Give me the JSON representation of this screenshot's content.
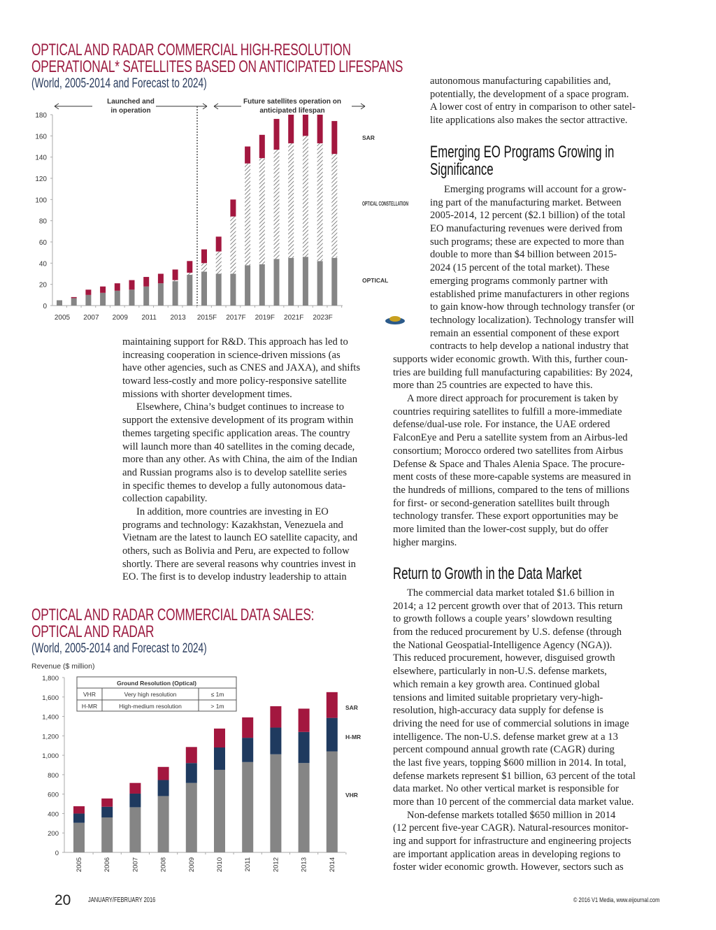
{
  "chart1": {
    "title_lines": [
      "OPTICAL AND RADAR COMMERCIAL HIGH-RESOLUTION",
      "OPERATIONAL* SATELLITES BASED ON ANTICIPATED LIFESPANS"
    ],
    "subtitle": "(World, 2005-2014 and Forecast to 2024)"
  },
  "chart2": {
    "title_lines": [
      "OPTICAL AND RADAR COMMERCIAL DATA SALES:",
      "OPTICAL AND RADAR"
    ],
    "subtitle": "(World, 2005-2014 and Forecast to 2024)"
  },
  "chart_data": [
    {
      "type": "bar",
      "stacked": true,
      "categories": [
        "2005",
        "2006",
        "2007",
        "2008",
        "2009",
        "2010",
        "2011",
        "2012",
        "2013",
        "2014",
        "2015F",
        "2016F",
        "2017F",
        "2018F",
        "2019F",
        "2020F",
        "2021F",
        "2022F",
        "2023F",
        "2024F"
      ],
      "tick_labels": [
        "2005",
        "2007",
        "2009",
        "2011",
        "2013",
        "2015F",
        "2017F",
        "2019F",
        "2021F",
        "2023F"
      ],
      "series": [
        {
          "name": "OPTICAL",
          "color": "#858585",
          "values": [
            5,
            7,
            10,
            12,
            14,
            15,
            18,
            21,
            23,
            29,
            32,
            30,
            30,
            38,
            39,
            44,
            45,
            46,
            42,
            45
          ]
        },
        {
          "name": "OPTICAL CONSTELLATION",
          "color": "hatched",
          "values": [
            0,
            0,
            0,
            0,
            0,
            0,
            0,
            0,
            1,
            2,
            8,
            21,
            54,
            96,
            100,
            103,
            108,
            114,
            111,
            98
          ]
        },
        {
          "name": "SAR",
          "color": "#a3173f",
          "values": [
            0,
            1,
            5,
            6,
            7,
            9,
            9,
            9,
            10,
            11,
            13,
            14,
            16,
            16,
            22,
            29,
            27,
            20,
            27,
            31
          ]
        }
      ],
      "yticks": [
        0,
        20,
        40,
        60,
        80,
        100,
        120,
        140,
        160,
        180
      ],
      "ylim": [
        0,
        180
      ],
      "legend_placement": "right",
      "annotations": {
        "left_region": [
          "Launched and",
          "in operation"
        ],
        "right_region": [
          "Future satellites operation on",
          "anticipated lifespan"
        ]
      },
      "grid": false
    },
    {
      "type": "bar",
      "stacked": true,
      "ylabel": "Revenue ($ million)",
      "categories": [
        "2005",
        "2006",
        "2007",
        "2008",
        "2009",
        "2010",
        "2011",
        "2012",
        "2013",
        "2014"
      ],
      "series": [
        {
          "name": "VHR",
          "color": "#858585",
          "values": [
            305,
            360,
            465,
            580,
            715,
            850,
            930,
            1010,
            920,
            1040
          ]
        },
        {
          "name": "H-MR",
          "color": "#1f3a5f",
          "values": [
            95,
            110,
            140,
            165,
            205,
            230,
            250,
            275,
            320,
            345
          ]
        },
        {
          "name": "SAR",
          "color": "#a3173f",
          "values": [
            75,
            85,
            110,
            135,
            165,
            195,
            210,
            220,
            240,
            265
          ]
        }
      ],
      "yticks": [
        "0",
        "200",
        "400",
        "600",
        "800",
        "1,000",
        "1,200",
        "1,400",
        "1,600",
        "1,800"
      ],
      "ylim": [
        0,
        1800
      ],
      "legend_placement": "right",
      "grid": false,
      "table": {
        "header": "Ground Resolution (Optical)",
        "rows": [
          [
            "VHR",
            "Very high resolution",
            "≤ 1m"
          ],
          [
            "H-MR",
            "High-medium resolution",
            "> 1m"
          ]
        ]
      }
    }
  ],
  "left_column": [
    {
      "indent": false,
      "lines": [
        "maintaining support for R&D. This approach has led to",
        "increasing cooperation in science-driven missions (as",
        "have other agencies, such as CNES and JAXA), and shifts",
        "toward less-costly and more policy-responsive satellite",
        "missions with shorter development times."
      ]
    },
    {
      "indent": true,
      "lines": [
        "Elsewhere, China’s budget continues to increase to",
        "support the extensive development of its program within",
        "themes targeting specific application areas. The country",
        "will launch more than 40 satellites in the coming decade,",
        "more than any other. As with China, the aim of the Indian",
        "and Russian programs also is to develop satellite series",
        "in specific themes to develop a fully autonomous data-",
        "collection capability."
      ]
    },
    {
      "indent": true,
      "lines": [
        "In addition, more countries are investing in EO",
        "programs and technology: Kazakhstan, Venezuela and",
        "Vietnam are the latest to launch EO satellite capacity, and",
        "others, such as Bolivia and Peru, are expected to follow",
        "shortly. There are several reasons why countries invest in",
        "EO. The first is to develop industry leadership to attain"
      ]
    }
  ],
  "right_top": [
    {
      "indent": false,
      "lines": [
        "autonomous manufacturing capabilities and,",
        "potentially, the development of a space program.",
        "A lower cost of entry in comparison to other satel-",
        "lite applications also makes the sector attractive."
      ]
    }
  ],
  "section1": {
    "heading_lines": [
      "Emerging EO Programs Growing in",
      "Significance"
    ],
    "narrow": [
      {
        "indent": true,
        "lines": [
          "Emerging programs will account for a grow-",
          "ing part of the manufacturing market. Between",
          "2005-2014, 12 percent ($2.1 billion) of the total",
          "EO manufacturing revenues were derived from",
          "such programs; these are expected to more than",
          "double to more than $4 billion between 2015-",
          "2024 (15 percent of the total market). These",
          "emerging programs commonly partner with",
          "established prime manufacturers in other regions",
          "to gain know-how through technology transfer (or",
          "technology localization). Technology transfer will",
          "remain an essential component of these export",
          "contracts to help develop a national industry that"
        ]
      }
    ],
    "wide": [
      {
        "indent": false,
        "lines": [
          "supports wider economic growth. With this, further coun-",
          "tries are building full manufacturing capabilities: By 2024,",
          "more than 25 countries are expected to have this."
        ]
      },
      {
        "indent": true,
        "lines": [
          "A more direct approach for procurement is taken by",
          "countries requiring satellites to fulfill a more-immediate",
          "defense/dual-use role. For instance, the UAE ordered",
          "FalconEye and Peru a satellite system from an Airbus-led",
          "consortium; Morocco ordered two satellites from Airbus",
          "Defense & Space and Thales Alenia Space. The procure-",
          "ment costs of these more-capable systems are measured in",
          "the hundreds of millions, compared to the tens of millions",
          "for first- or second-generation satellites built through",
          "technology transfer. These export opportunities may be",
          "more limited than the lower-cost supply, but do offer",
          "higher margins."
        ]
      }
    ]
  },
  "section2": {
    "heading": "Return to Growth in the Data Market",
    "paragraphs": [
      {
        "indent": true,
        "lines": [
          "The commercial data market totaled $1.6 billion in",
          "2014; a 12 percent growth over that of 2013. This return",
          "to growth follows a couple years’ slowdown resulting",
          "from the reduced procurement by U.S. defense (through",
          "the National Geospatial-Intelligence Agency (NGA)).",
          "This reduced procurement, however, disguised growth",
          "elsewhere, particularly in non-U.S. defense markets,",
          "which remain a key growth area. Continued global",
          "tensions and limited suitable proprietary very-high-",
          "resolution, high-accuracy data supply for defense is",
          "driving the need for use of commercial solutions in image",
          "intelligence. The non-U.S. defense market grew at a 13",
          "percent compound annual growth rate (CAGR) during",
          "the last five years, topping $600 million in 2014. In total,",
          "defense markets represent $1 billion, 63 percent of the total",
          "data market. No other vertical market is responsible for",
          "more than 10 percent of the commercial data market value."
        ]
      },
      {
        "indent": true,
        "lines": [
          "Non-defense markets totalled $650 million in 2014",
          "(12 percent five-year CAGR). Natural-resources monitor-",
          "ing and support for infrastructure and engineering projects",
          "are important application areas in developing regions to",
          "foster wider economic growth. However, sectors such as"
        ]
      }
    ]
  },
  "footer": {
    "page_number": "20",
    "issue": "JANUARY/FEBRUARY 2016",
    "copyright": "© 2016 V1 Media, www.eijournal.com"
  }
}
